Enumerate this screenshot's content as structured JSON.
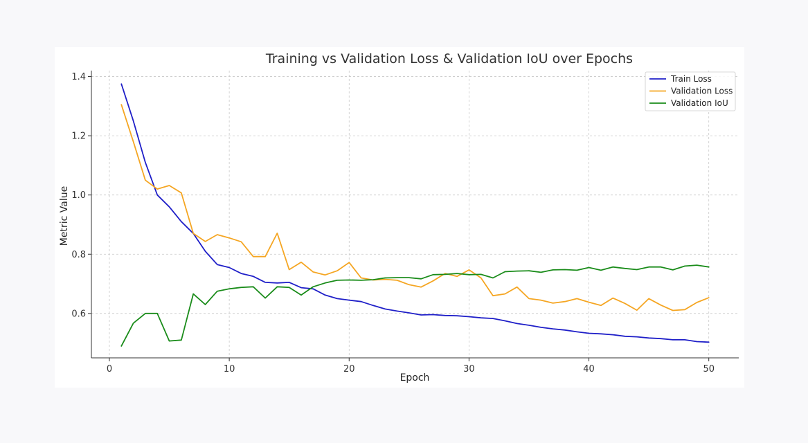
{
  "chart_data": {
    "type": "line",
    "title": "Training vs Validation Loss & Validation IoU over Epochs",
    "xlabel": "Epoch",
    "ylabel": "Metric Value",
    "xlim": [
      -1.5,
      52.5
    ],
    "ylim": [
      0.45,
      1.42
    ],
    "xticks": [
      0,
      10,
      20,
      30,
      40,
      50
    ],
    "yticks": [
      0.6,
      0.8,
      1.0,
      1.2,
      1.4
    ],
    "xtick_labels": [
      "0",
      "10",
      "20",
      "30",
      "40",
      "50"
    ],
    "ytick_labels": [
      "0.6",
      "0.8",
      "1.0",
      "1.2",
      "1.4"
    ],
    "grid": true,
    "legend_position": "top-right",
    "x": [
      1,
      2,
      3,
      4,
      5,
      6,
      7,
      8,
      9,
      10,
      11,
      12,
      13,
      14,
      15,
      16,
      17,
      18,
      19,
      20,
      21,
      22,
      23,
      24,
      25,
      26,
      27,
      28,
      29,
      30,
      31,
      32,
      33,
      34,
      35,
      36,
      37,
      38,
      39,
      40,
      41,
      42,
      43,
      44,
      45,
      46,
      47,
      48,
      49,
      50
    ],
    "series": [
      {
        "name": "Train Loss",
        "color": "#1f1fc8",
        "values": [
          1.375,
          1.25,
          1.11,
          1.0,
          0.96,
          0.91,
          0.87,
          0.81,
          0.765,
          0.755,
          0.735,
          0.725,
          0.705,
          0.703,
          0.705,
          0.687,
          0.683,
          0.662,
          0.65,
          0.645,
          0.64,
          0.627,
          0.615,
          0.608,
          0.602,
          0.595,
          0.596,
          0.593,
          0.592,
          0.589,
          0.585,
          0.583,
          0.575,
          0.566,
          0.56,
          0.553,
          0.548,
          0.544,
          0.538,
          0.533,
          0.531,
          0.528,
          0.523,
          0.521,
          0.517,
          0.515,
          0.511,
          0.511,
          0.505,
          0.503
        ]
      },
      {
        "name": "Validation Loss",
        "color": "#f5a623",
        "values": [
          1.305,
          1.18,
          1.05,
          1.02,
          1.032,
          1.007,
          0.87,
          0.843,
          0.866,
          0.855,
          0.842,
          0.792,
          0.792,
          0.871,
          0.748,
          0.773,
          0.74,
          0.73,
          0.744,
          0.772,
          0.72,
          0.713,
          0.715,
          0.712,
          0.697,
          0.689,
          0.71,
          0.735,
          0.725,
          0.747,
          0.72,
          0.66,
          0.666,
          0.689,
          0.65,
          0.645,
          0.635,
          0.64,
          0.65,
          0.638,
          0.627,
          0.652,
          0.634,
          0.611,
          0.65,
          0.628,
          0.61,
          0.613,
          0.637,
          0.653
        ]
      },
      {
        "name": "Validation IoU",
        "color": "#1a8c1a",
        "values": [
          0.49,
          0.567,
          0.6,
          0.6,
          0.507,
          0.51,
          0.666,
          0.63,
          0.675,
          0.683,
          0.688,
          0.69,
          0.652,
          0.69,
          0.688,
          0.662,
          0.69,
          0.703,
          0.712,
          0.713,
          0.712,
          0.714,
          0.72,
          0.721,
          0.721,
          0.717,
          0.731,
          0.732,
          0.735,
          0.731,
          0.732,
          0.72,
          0.741,
          0.743,
          0.744,
          0.739,
          0.747,
          0.748,
          0.746,
          0.755,
          0.746,
          0.757,
          0.752,
          0.748,
          0.757,
          0.757,
          0.747,
          0.76,
          0.763,
          0.757
        ]
      }
    ]
  }
}
